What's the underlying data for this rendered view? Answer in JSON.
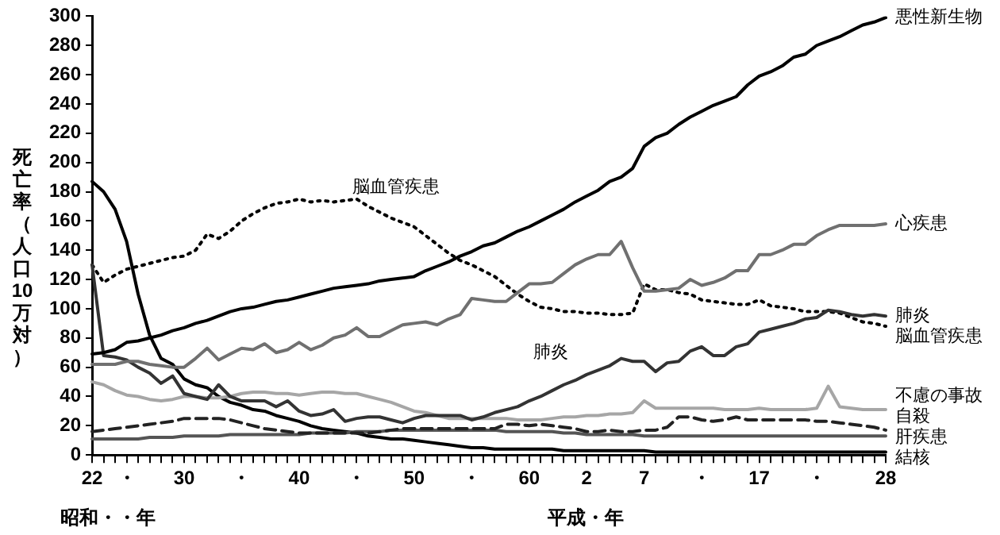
{
  "chart_data": {
    "type": "line",
    "xlabel": "昭和・・年",
    "ylabel": "死亡率（人口10万対）",
    "annotations": [
      "平成・年",
      "脳血管疾患",
      "肺炎"
    ],
    "categories": [
      "22",
      null,
      null,
      "・",
      null,
      null,
      null,
      null,
      "30",
      null,
      null,
      null,
      null,
      "・",
      null,
      null,
      null,
      null,
      "40",
      null,
      null,
      null,
      null,
      "・",
      null,
      null,
      null,
      null,
      "50",
      null,
      null,
      null,
      null,
      "・",
      null,
      null,
      null,
      null,
      "60",
      null,
      null,
      null,
      null,
      "2",
      null,
      null,
      null,
      null,
      "7",
      null,
      null,
      null,
      null,
      "・",
      null,
      null,
      null,
      null,
      "17",
      null,
      null,
      null,
      null,
      "・",
      null,
      null,
      null,
      null,
      null,
      "28"
    ],
    "ylim": [
      0,
      300
    ],
    "yticks": [
      0,
      20,
      40,
      60,
      80,
      100,
      120,
      140,
      160,
      180,
      200,
      220,
      240,
      260,
      280,
      300
    ],
    "grid": false,
    "legend": false,
    "marker": "none",
    "series": [
      {
        "name": "悪性新生物",
        "color": "#000000",
        "line_style": "solid",
        "values": [
          69,
          70,
          72,
          77,
          78,
          80,
          82,
          85,
          87,
          90,
          92,
          95,
          98,
          100,
          101,
          103,
          105,
          106,
          108,
          110,
          112,
          114,
          115,
          116,
          117,
          119,
          120,
          121,
          122,
          126,
          129,
          132,
          136,
          139,
          143,
          145,
          149,
          153,
          156,
          160,
          164,
          168,
          173,
          177,
          181,
          187,
          190,
          196,
          211,
          217,
          220,
          226,
          231,
          235,
          239,
          242,
          245,
          253,
          259,
          262,
          266,
          272,
          274,
          280,
          283,
          286,
          290,
          294,
          296,
          299
        ]
      },
      {
        "name": "心疾患",
        "color": "#707070",
        "line_style": "solid",
        "values": [
          62,
          62,
          62,
          64,
          64,
          62,
          61,
          60,
          60,
          66,
          73,
          65,
          69,
          73,
          72,
          76,
          70,
          72,
          77,
          72,
          75,
          80,
          82,
          87,
          81,
          81,
          85,
          89,
          90,
          91,
          89,
          93,
          96,
          107,
          106,
          105,
          105,
          111,
          117,
          117,
          118,
          124,
          130,
          134,
          137,
          137,
          146,
          128,
          112,
          112,
          113,
          114,
          120,
          116,
          118,
          121,
          126,
          126,
          137,
          137,
          140,
          144,
          144,
          150,
          154,
          157,
          157,
          157,
          157,
          158
        ]
      },
      {
        "name": "肺炎",
        "color": "#333333",
        "line_style": "solid",
        "values": [
          130,
          68,
          67,
          65,
          60,
          56,
          49,
          54,
          42,
          40,
          38,
          48,
          40,
          37,
          37,
          37,
          33,
          37,
          30,
          27,
          28,
          31,
          23,
          25,
          26,
          26,
          24,
          22,
          25,
          27,
          27,
          27,
          27,
          24,
          26,
          29,
          31,
          33,
          37,
          40,
          44,
          48,
          51,
          55,
          58,
          61,
          66,
          64,
          64,
          57,
          63,
          64,
          71,
          74,
          68,
          68,
          74,
          76,
          84,
          86,
          88,
          90,
          93,
          94,
          99,
          98,
          96,
          95,
          96,
          95
        ]
      },
      {
        "name": "脳血管疾患",
        "color": "#000000",
        "line_style": "dotted",
        "values": [
          130,
          118,
          123,
          127,
          129,
          131,
          133,
          135,
          136,
          140,
          151,
          148,
          153,
          160,
          165,
          169,
          172,
          173,
          175,
          173,
          174,
          173,
          174,
          175,
          170,
          166,
          162,
          159,
          156,
          150,
          144,
          138,
          133,
          130,
          126,
          122,
          116,
          110,
          105,
          101,
          100,
          98,
          98,
          97,
          97,
          96,
          96,
          97,
          117,
          113,
          113,
          111,
          110,
          106,
          105,
          104,
          103,
          103,
          106,
          102,
          101,
          100,
          98,
          98,
          98,
          97,
          94,
          91,
          90,
          88
        ]
      },
      {
        "name": "不慮の事故",
        "color": "#a6a6a6",
        "line_style": "solid",
        "values": [
          50,
          48,
          44,
          41,
          40,
          38,
          37,
          38,
          40,
          40,
          39,
          39,
          40,
          42,
          43,
          43,
          42,
          42,
          41,
          42,
          43,
          43,
          42,
          42,
          40,
          38,
          36,
          33,
          30,
          29,
          27,
          25,
          25,
          25,
          25,
          25,
          25,
          24,
          24,
          24,
          25,
          26,
          26,
          27,
          27,
          28,
          28,
          29,
          37,
          32,
          32,
          32,
          32,
          32,
          32,
          31,
          31,
          31,
          32,
          31,
          31,
          31,
          31,
          32,
          47,
          33,
          32,
          31,
          31,
          31
        ]
      },
      {
        "name": "自殺",
        "color": "#222222",
        "line_style": "dashed",
        "values": [
          16,
          17,
          18,
          19,
          20,
          21,
          22,
          23,
          25,
          25,
          25,
          25,
          24,
          22,
          20,
          18,
          17,
          16,
          15,
          15,
          15,
          15,
          15,
          15,
          15,
          16,
          17,
          18,
          18,
          18,
          18,
          18,
          18,
          18,
          18,
          18,
          21,
          21,
          20,
          21,
          20,
          19,
          18,
          16,
          16,
          17,
          16,
          16,
          17,
          17,
          19,
          26,
          26,
          24,
          23,
          24,
          26,
          24,
          24,
          24,
          24,
          24,
          24,
          23,
          23,
          22,
          21,
          20,
          19,
          17
        ]
      },
      {
        "name": "肝疾患",
        "color": "#555555",
        "line_style": "solid",
        "values": [
          11,
          11,
          11,
          11,
          11,
          12,
          12,
          12,
          13,
          13,
          13,
          13,
          14,
          14,
          14,
          14,
          14,
          14,
          14,
          15,
          15,
          15,
          15,
          16,
          16,
          16,
          17,
          17,
          17,
          17,
          17,
          17,
          17,
          17,
          17,
          17,
          16,
          16,
          16,
          16,
          16,
          15,
          15,
          14,
          14,
          14,
          14,
          14,
          13,
          13,
          13,
          13,
          13,
          13,
          13,
          13,
          13,
          13,
          13,
          13,
          13,
          13,
          13,
          13,
          13,
          13,
          13,
          13,
          13,
          13
        ]
      },
      {
        "name": "結核",
        "color": "#000000",
        "line_style": "solid",
        "values": [
          187,
          180,
          168,
          146,
          110,
          82,
          66,
          62,
          52,
          48,
          46,
          40,
          36,
          34,
          31,
          30,
          27,
          25,
          23,
          20,
          18,
          17,
          16,
          15,
          13,
          12,
          11,
          11,
          10,
          9,
          8,
          7,
          6,
          5,
          5,
          4,
          4,
          4,
          4,
          4,
          4,
          3,
          3,
          3,
          3,
          3,
          3,
          3,
          3,
          2,
          2,
          2,
          2,
          2,
          2,
          2,
          2,
          2,
          2,
          2,
          2,
          2,
          2,
          2,
          2,
          2,
          2,
          2,
          2,
          2
        ]
      }
    ]
  }
}
